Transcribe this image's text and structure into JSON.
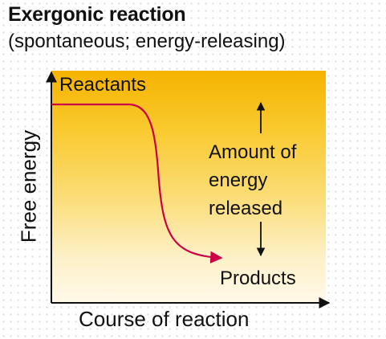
{
  "diagram": {
    "title": "Exergonic reaction",
    "subtitle": "(spontaneous; energy-releasing)",
    "x_axis_label": "Course of reaction",
    "y_axis_label": "Free energy",
    "reactants_label": "Reactants",
    "products_label": "Products",
    "energy_label_lines": [
      "Amount of",
      "energy",
      "released"
    ],
    "colors": {
      "gradient_top": "#f5b300",
      "gradient_bottom": "#fff9e9",
      "curve": "#cc0044",
      "axes": "#111111"
    }
  }
}
